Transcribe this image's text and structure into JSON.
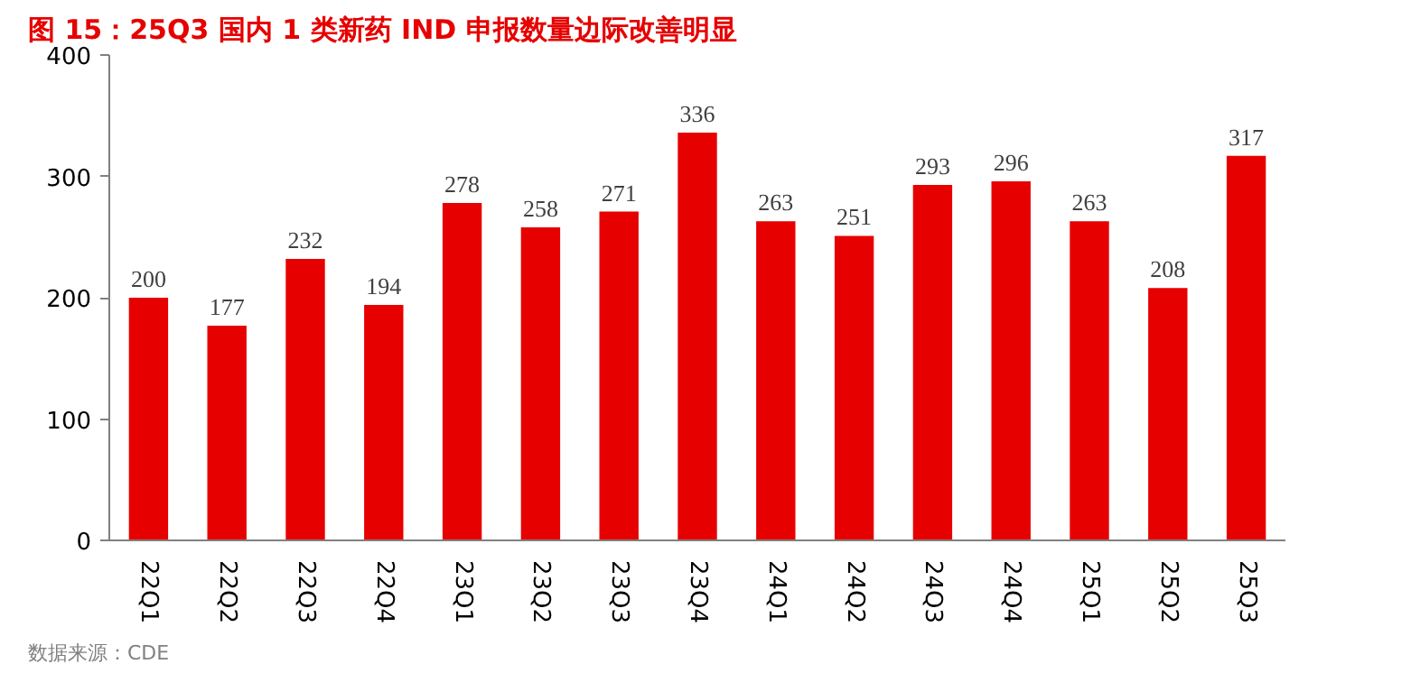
{
  "chart_data": {
    "type": "bar",
    "title": "图 15：25Q3 国内 1 类新药 IND 申报数量边际改善明显",
    "categories": [
      "22Q1",
      "22Q2",
      "22Q3",
      "22Q4",
      "23Q1",
      "23Q2",
      "23Q3",
      "23Q4",
      "24Q1",
      "24Q2",
      "24Q3",
      "24Q4",
      "25Q1",
      "25Q2",
      "25Q3"
    ],
    "values": [
      200,
      177,
      232,
      194,
      278,
      258,
      271,
      336,
      263,
      251,
      293,
      296,
      263,
      208,
      317
    ],
    "color": "#e60000",
    "ylim": [
      0,
      400
    ],
    "yticks": [
      0,
      100,
      200,
      300,
      400
    ],
    "grid": false,
    "data_labels": true,
    "annotations": [
      "数据来源：CDE"
    ]
  }
}
